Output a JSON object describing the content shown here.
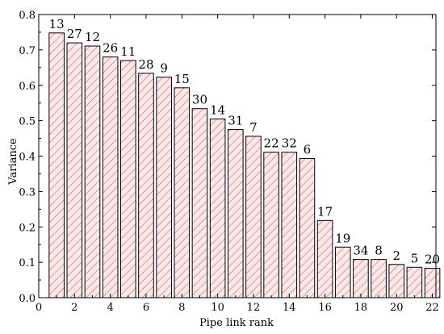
{
  "chart_data": {
    "type": "bar",
    "xlabel": "Pipe link rank",
    "ylabel": "Variance",
    "xlim": [
      0,
      22.2
    ],
    "ylim": [
      0,
      0.8
    ],
    "grid": false,
    "legend": "none",
    "x_ticks": [
      0,
      2,
      4,
      6,
      8,
      10,
      12,
      14,
      16,
      18,
      20,
      22
    ],
    "x_tick_labels": [
      "0",
      "2",
      "4",
      "6",
      "8",
      "10",
      "12",
      "14",
      "16",
      "18",
      "20",
      "22"
    ],
    "y_ticks": [
      0,
      0.1,
      0.2,
      0.3,
      0.4,
      0.5,
      0.6,
      0.7,
      0.8
    ],
    "y_tick_labels": [
      "0.0",
      "0.1",
      "0.2",
      "0.3",
      "0.4",
      "0.5",
      "0.6",
      "0.7",
      "0.8"
    ],
    "bar_fill": "#fbe8e8",
    "bar_hatch_color": "#e0524f",
    "bar_edge_color": "#000000",
    "bars": [
      {
        "rank": 1,
        "label": "13",
        "value": 0.748
      },
      {
        "rank": 2,
        "label": "27",
        "value": 0.72
      },
      {
        "rank": 3,
        "label": "12",
        "value": 0.711
      },
      {
        "rank": 4,
        "label": "26",
        "value": 0.68
      },
      {
        "rank": 5,
        "label": "11",
        "value": 0.67
      },
      {
        "rank": 6,
        "label": "28",
        "value": 0.634
      },
      {
        "rank": 7,
        "label": "9",
        "value": 0.623
      },
      {
        "rank": 8,
        "label": "15",
        "value": 0.593
      },
      {
        "rank": 9,
        "label": "30",
        "value": 0.534
      },
      {
        "rank": 10,
        "label": "14",
        "value": 0.505
      },
      {
        "rank": 11,
        "label": "31",
        "value": 0.475
      },
      {
        "rank": 12,
        "label": "7",
        "value": 0.456
      },
      {
        "rank": 13,
        "label": "22",
        "value": 0.411
      },
      {
        "rank": 14,
        "label": "32",
        "value": 0.411
      },
      {
        "rank": 15,
        "label": "6",
        "value": 0.393
      },
      {
        "rank": 16,
        "label": "17",
        "value": 0.218
      },
      {
        "rank": 17,
        "label": "19",
        "value": 0.143
      },
      {
        "rank": 18,
        "label": "34",
        "value": 0.108
      },
      {
        "rank": 19,
        "label": "8",
        "value": 0.108
      },
      {
        "rank": 20,
        "label": "2",
        "value": 0.094
      },
      {
        "rank": 21,
        "label": "5",
        "value": 0.086
      },
      {
        "rank": 22,
        "label": "20",
        "value": 0.083
      }
    ]
  }
}
